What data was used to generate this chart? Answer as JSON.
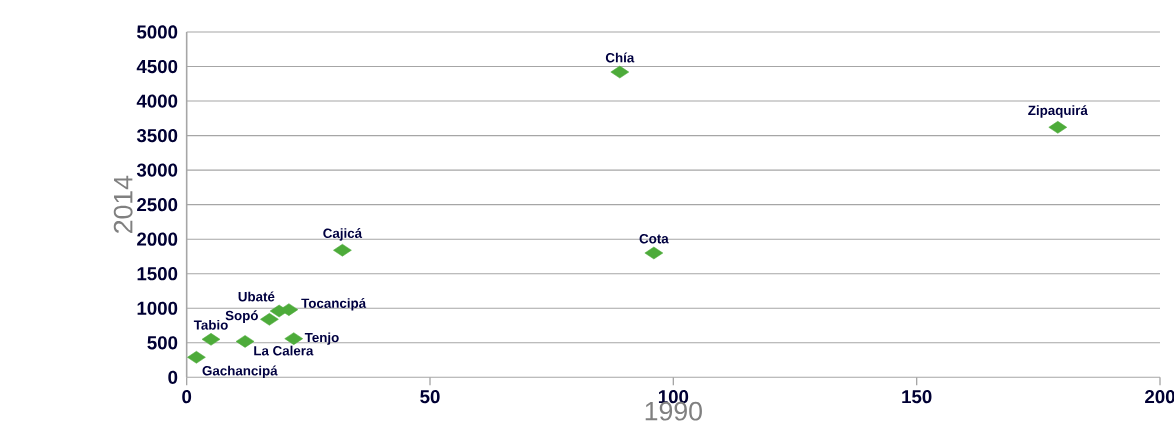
{
  "chart_data": {
    "type": "scatter",
    "xlabel": "1990",
    "ylabel": "2014",
    "x": [
      89,
      179,
      32,
      96,
      21,
      19,
      17,
      5,
      12,
      22,
      2
    ],
    "values": [
      4420,
      3620,
      1840,
      1800,
      980,
      960,
      840,
      550,
      520,
      560,
      290
    ],
    "color": "#4dab3a",
    "marker": "diamond",
    "grid": "y",
    "xlim": [
      0,
      200
    ],
    "ylim": [
      0,
      5000
    ],
    "xticks": [
      0,
      50,
      100,
      150,
      200
    ],
    "yticks": [
      0,
      500,
      1000,
      1500,
      2000,
      2500,
      3000,
      3500,
      4000,
      4500,
      5000
    ],
    "annotations": [
      {
        "text": "Chía",
        "x": 89,
        "y": 4420
      },
      {
        "text": "Zipaquirá",
        "x": 179,
        "y": 3620
      },
      {
        "text": "Cajicá",
        "x": 32,
        "y": 1840
      },
      {
        "text": "Cota",
        "x": 96,
        "y": 1800
      },
      {
        "text": "Tocancipá",
        "x": 21,
        "y": 980
      },
      {
        "text": "Ubaté",
        "x": 19,
        "y": 960
      },
      {
        "text": "Sopó",
        "x": 17,
        "y": 840
      },
      {
        "text": "Tabio",
        "x": 5,
        "y": 550
      },
      {
        "text": "La Calera",
        "x": 12,
        "y": 520
      },
      {
        "text": "Tenjo",
        "x": 22,
        "y": 560
      },
      {
        "text": "Gachancipá",
        "x": 2,
        "y": 290
      }
    ]
  }
}
